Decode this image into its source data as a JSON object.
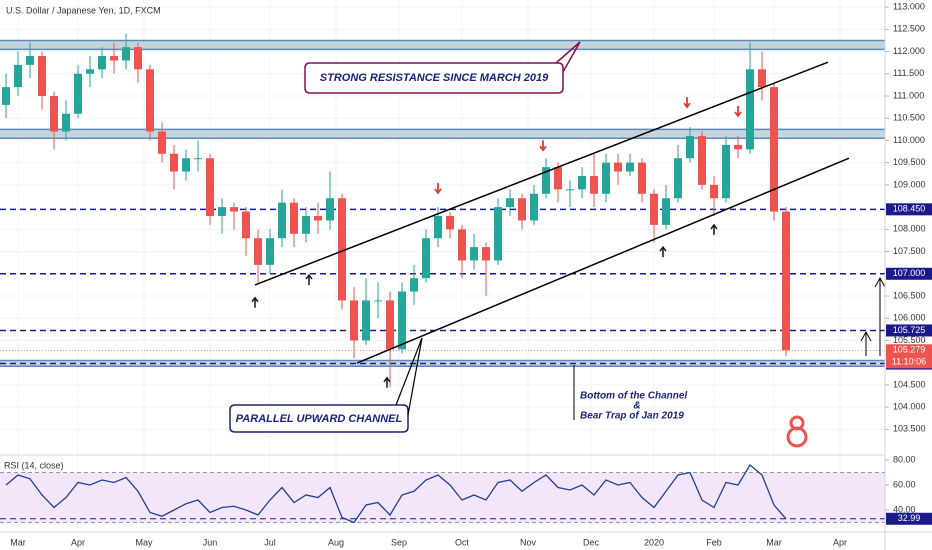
{
  "chart_data": [
    {
      "type": "candlestick",
      "title": "U.S. Dollar / Japanese Yen, 1D, FXCM",
      "x": [
        -4,
        0,
        4,
        8,
        12,
        16,
        20,
        24,
        28,
        32,
        36,
        40,
        44,
        48,
        52,
        56,
        60,
        64,
        68,
        72,
        76,
        80,
        84,
        88,
        92,
        96,
        100,
        104,
        108,
        112,
        116,
        120,
        124,
        128,
        132,
        136,
        140,
        144,
        148,
        152,
        156,
        160,
        164,
        168,
        172,
        176,
        180,
        184,
        188,
        192,
        196,
        200,
        204,
        208,
        212,
        216,
        220,
        224,
        228,
        232,
        236,
        240,
        244,
        248,
        252,
        256
      ],
      "open": [
        110.8,
        111.2,
        111.7,
        111.9,
        111.0,
        110.2,
        110.6,
        111.5,
        111.6,
        111.9,
        111.8,
        112.1,
        111.6,
        110.2,
        109.7,
        109.3,
        109.6,
        109.6,
        108.3,
        108.5,
        108.4,
        107.8,
        107.2,
        107.8,
        108.6,
        107.9,
        108.3,
        108.2,
        108.7,
        106.4,
        105.5,
        106.4,
        106.4,
        105.3,
        106.6,
        106.9,
        107.8,
        108.3,
        108.0,
        107.3,
        107.6,
        107.3,
        108.5,
        108.7,
        108.2,
        108.8,
        109.4,
        108.9,
        108.9,
        109.2,
        108.8,
        109.5,
        109.3,
        109.5,
        108.8,
        108.1,
        108.7,
        109.6,
        110.1,
        109.0,
        108.7,
        109.9,
        109.8,
        111.6,
        111.2,
        108.4
      ],
      "high": [
        111.5,
        112.0,
        112.2,
        112.0,
        111.1,
        110.9,
        111.7,
        111.9,
        112.1,
        112.2,
        112.4,
        112.2,
        111.7,
        110.4,
        109.9,
        109.8,
        110.0,
        109.7,
        108.7,
        108.6,
        108.5,
        108.0,
        108.0,
        108.9,
        108.7,
        108.5,
        108.6,
        109.3,
        108.8,
        106.7,
        106.9,
        106.8,
        106.6,
        106.8,
        107.2,
        108.0,
        108.5,
        108.4,
        108.1,
        107.9,
        107.7,
        108.7,
        108.9,
        108.8,
        109.0,
        109.6,
        109.5,
        109.1,
        109.4,
        109.7,
        109.7,
        109.7,
        109.7,
        109.6,
        108.9,
        109.0,
        109.9,
        110.3,
        110.2,
        109.2,
        110.1,
        110.1,
        112.2,
        112.0,
        111.3,
        108.5
      ],
      "low": [
        110.5,
        111.0,
        111.4,
        110.7,
        109.8,
        110.0,
        110.5,
        111.2,
        111.4,
        111.5,
        111.6,
        111.3,
        110.0,
        109.5,
        108.9,
        109.1,
        109.3,
        108.1,
        107.9,
        108.0,
        107.4,
        106.8,
        107.0,
        107.6,
        107.6,
        107.7,
        107.9,
        108.0,
        106.2,
        105.1,
        105.4,
        106.0,
        104.45,
        105.2,
        106.3,
        106.8,
        107.6,
        107.8,
        106.9,
        107.1,
        106.5,
        107.2,
        108.3,
        108.0,
        108.1,
        108.7,
        108.6,
        108.5,
        108.7,
        108.5,
        108.6,
        109.0,
        109.2,
        108.6,
        107.7,
        108.0,
        108.6,
        109.5,
        108.9,
        108.3,
        108.6,
        109.6,
        109.7,
        110.9,
        108.2,
        105.15
      ],
      "close": [
        111.2,
        111.7,
        111.9,
        111.0,
        110.2,
        110.6,
        111.5,
        111.6,
        111.9,
        111.8,
        112.1,
        111.6,
        110.2,
        109.7,
        109.3,
        109.6,
        109.6,
        108.3,
        108.5,
        108.4,
        107.8,
        107.2,
        107.8,
        108.6,
        107.9,
        108.3,
        108.2,
        108.7,
        106.4,
        105.5,
        106.4,
        106.4,
        105.3,
        106.6,
        106.9,
        107.8,
        108.3,
        108.0,
        107.3,
        107.6,
        107.3,
        108.5,
        108.7,
        108.2,
        108.8,
        109.4,
        108.9,
        108.9,
        109.2,
        108.8,
        109.5,
        109.3,
        109.5,
        108.8,
        108.1,
        108.7,
        109.6,
        110.1,
        109.0,
        108.7,
        109.9,
        109.8,
        111.6,
        111.2,
        108.4,
        105.279
      ],
      "up_color": "#26a69a",
      "down_color": "#ef5350",
      "xlim": [
        -6,
        289
      ],
      "xticks": [
        {
          "value": 0,
          "label": "Mar"
        },
        {
          "value": 20,
          "label": "Apr"
        },
        {
          "value": 42,
          "label": "May"
        },
        {
          "value": 64,
          "label": "Jun"
        },
        {
          "value": 84,
          "label": "Jul"
        },
        {
          "value": 106,
          "label": "Aug"
        },
        {
          "value": 127,
          "label": "Sep"
        },
        {
          "value": 148,
          "label": "Oct"
        },
        {
          "value": 170,
          "label": "Nov"
        },
        {
          "value": 191,
          "label": "Dec"
        },
        {
          "value": 212,
          "label": "2020"
        },
        {
          "value": 232,
          "label": "Feb"
        },
        {
          "value": 252,
          "label": "Mar"
        },
        {
          "value": 274,
          "label": "Apr"
        }
      ],
      "ylim": [
        103.26,
        113.16
      ],
      "yticks": [
        {
          "value": 113,
          "label": "113.000"
        },
        {
          "value": 112.5,
          "label": "112.500"
        },
        {
          "value": 112,
          "label": "112.000"
        },
        {
          "value": 111.5,
          "label": "111.500"
        },
        {
          "value": 111,
          "label": "111.000"
        },
        {
          "value": 110.5,
          "label": "110.500"
        },
        {
          "value": 110,
          "label": "110.000"
        },
        {
          "value": 109.5,
          "label": "109.500"
        },
        {
          "value": 109,
          "label": "109.000"
        },
        {
          "value": 108,
          "label": "108.000"
        },
        {
          "value": 107.5,
          "label": "107.500"
        },
        {
          "value": 106.5,
          "label": "106.500"
        },
        {
          "value": 106,
          "label": "106.000"
        },
        {
          "value": 105.5,
          "label": "105.500"
        },
        {
          "value": 104.5,
          "label": "104.500"
        },
        {
          "value": 104,
          "label": "104.000"
        },
        {
          "value": 103.5,
          "label": "103.500"
        }
      ],
      "grid": true,
      "zones": [
        [
          112.05,
          112.25
        ],
        [
          110.05,
          110.25
        ],
        [
          104.92,
          105.05
        ]
      ],
      "levels": [
        {
          "value": 108.45,
          "label": "108.450"
        },
        {
          "value": 107,
          "label": "107.000"
        },
        {
          "value": 105.725,
          "label": "105.725"
        },
        {
          "value": 104.98,
          "label": "104.980"
        }
      ],
      "level_color": "#1a1a8c",
      "last_label": "105.279",
      "countdown": "11:10:06",
      "trendlines": [
        {
          "x": [
            79,
            270
          ],
          "y": [
            106.75,
            111.76
          ]
        },
        {
          "x": [
            113,
            277
          ],
          "y": [
            104.99,
            109.6
          ]
        }
      ],
      "up_arrows": [
        {
          "x": 79,
          "y": 106.46
        },
        {
          "x": 97,
          "y": 106.97
        },
        {
          "x": 123,
          "y": 104.66
        },
        {
          "x": 215,
          "y": 107.6
        },
        {
          "x": 232,
          "y": 108.1
        }
      ],
      "down_arrows": [
        {
          "x": 140,
          "y": 108.82
        },
        {
          "x": 175,
          "y": 109.78
        },
        {
          "x": 223,
          "y": 110.75
        },
        {
          "x": 240,
          "y": 110.55
        }
      ],
      "annotations": [
        "STRONG RESISTANCE SINCE MARCH 2019",
        "PARALLEL UPWARD CHANNEL",
        "Bottom of the Channel",
        "&",
        "Bear Trap of Jan 2019"
      ]
    },
    {
      "type": "line",
      "title": "RSI (14, close)",
      "x": [
        -4,
        0,
        4,
        8,
        12,
        16,
        20,
        24,
        28,
        32,
        36,
        40,
        44,
        48,
        52,
        56,
        60,
        64,
        68,
        72,
        76,
        80,
        84,
        88,
        92,
        96,
        100,
        104,
        108,
        112,
        116,
        120,
        124,
        128,
        132,
        136,
        140,
        144,
        148,
        152,
        156,
        160,
        164,
        168,
        172,
        176,
        180,
        184,
        188,
        192,
        196,
        200,
        204,
        208,
        212,
        216,
        220,
        224,
        228,
        232,
        236,
        240,
        244,
        248,
        252,
        256
      ],
      "values": [
        60,
        68,
        65,
        52,
        42,
        50,
        62,
        60,
        64,
        62,
        66,
        55,
        38,
        35,
        40,
        45,
        48,
        38,
        42,
        43,
        40,
        36,
        48,
        58,
        46,
        52,
        50,
        58,
        34,
        30,
        44,
        46,
        36,
        52,
        55,
        64,
        68,
        60,
        48,
        52,
        48,
        62,
        64,
        55,
        62,
        68,
        58,
        56,
        60,
        52,
        64,
        60,
        62,
        50,
        42,
        55,
        68,
        70,
        48,
        42,
        62,
        60,
        76,
        68,
        44,
        32.99
      ],
      "color": "#1e3f9a",
      "ylim": [
        24,
        84
      ],
      "yticks": [
        {
          "value": 80,
          "label": "80.00"
        },
        {
          "value": 60,
          "label": "60.00"
        },
        {
          "value": 40,
          "label": "40.00"
        }
      ],
      "band": [
        30,
        70
      ],
      "last_label": "32.99"
    }
  ]
}
